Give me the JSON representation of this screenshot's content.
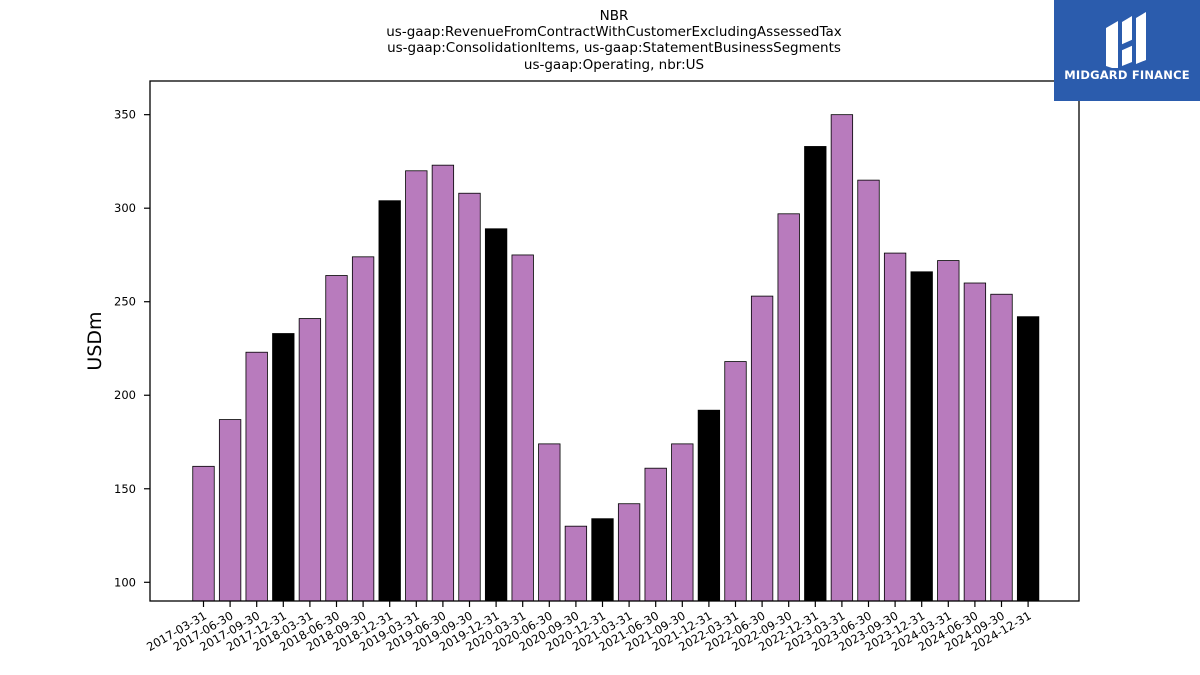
{
  "logo": {
    "text": "MIDGARD FINANCE",
    "background": "#2b5cad"
  },
  "chart_data": {
    "type": "bar",
    "title": [
      "NBR",
      "us-gaap:RevenueFromContractWithCustomerExcludingAssessedTax",
      "us-gaap:ConsolidationItems, us-gaap:StatementBusinessSegments",
      "us-gaap:Operating, nbr:US"
    ],
    "xlabel": "",
    "ylabel": "USDm",
    "ylim": [
      90,
      368
    ],
    "yticks": [
      100,
      150,
      200,
      250,
      300,
      350
    ],
    "grid": false,
    "colors": {
      "quarter": "#b87bbd",
      "year_end": "#000000",
      "edge": "#000000"
    },
    "categories": [
      "2017-03-31",
      "2017-06-30",
      "2017-09-30",
      "2017-12-31",
      "2018-03-31",
      "2018-06-30",
      "2018-09-30",
      "2018-12-31",
      "2019-03-31",
      "2019-06-30",
      "2019-09-30",
      "2019-12-31",
      "2020-03-31",
      "2020-06-30",
      "2020-09-30",
      "2020-12-31",
      "2021-03-31",
      "2021-06-30",
      "2021-09-30",
      "2021-12-31",
      "2022-03-31",
      "2022-06-30",
      "2022-09-30",
      "2022-12-31",
      "2023-03-31",
      "2023-06-30",
      "2023-09-30",
      "2023-12-31",
      "2024-03-31",
      "2024-06-30",
      "2024-09-30",
      "2024-12-31"
    ],
    "values": [
      162,
      187,
      223,
      233,
      241,
      264,
      274,
      304,
      320,
      323,
      308,
      289,
      275,
      174,
      130,
      134,
      142,
      161,
      174,
      192,
      218,
      253,
      297,
      333,
      350,
      315,
      276,
      266,
      272,
      260,
      254,
      242
    ]
  }
}
